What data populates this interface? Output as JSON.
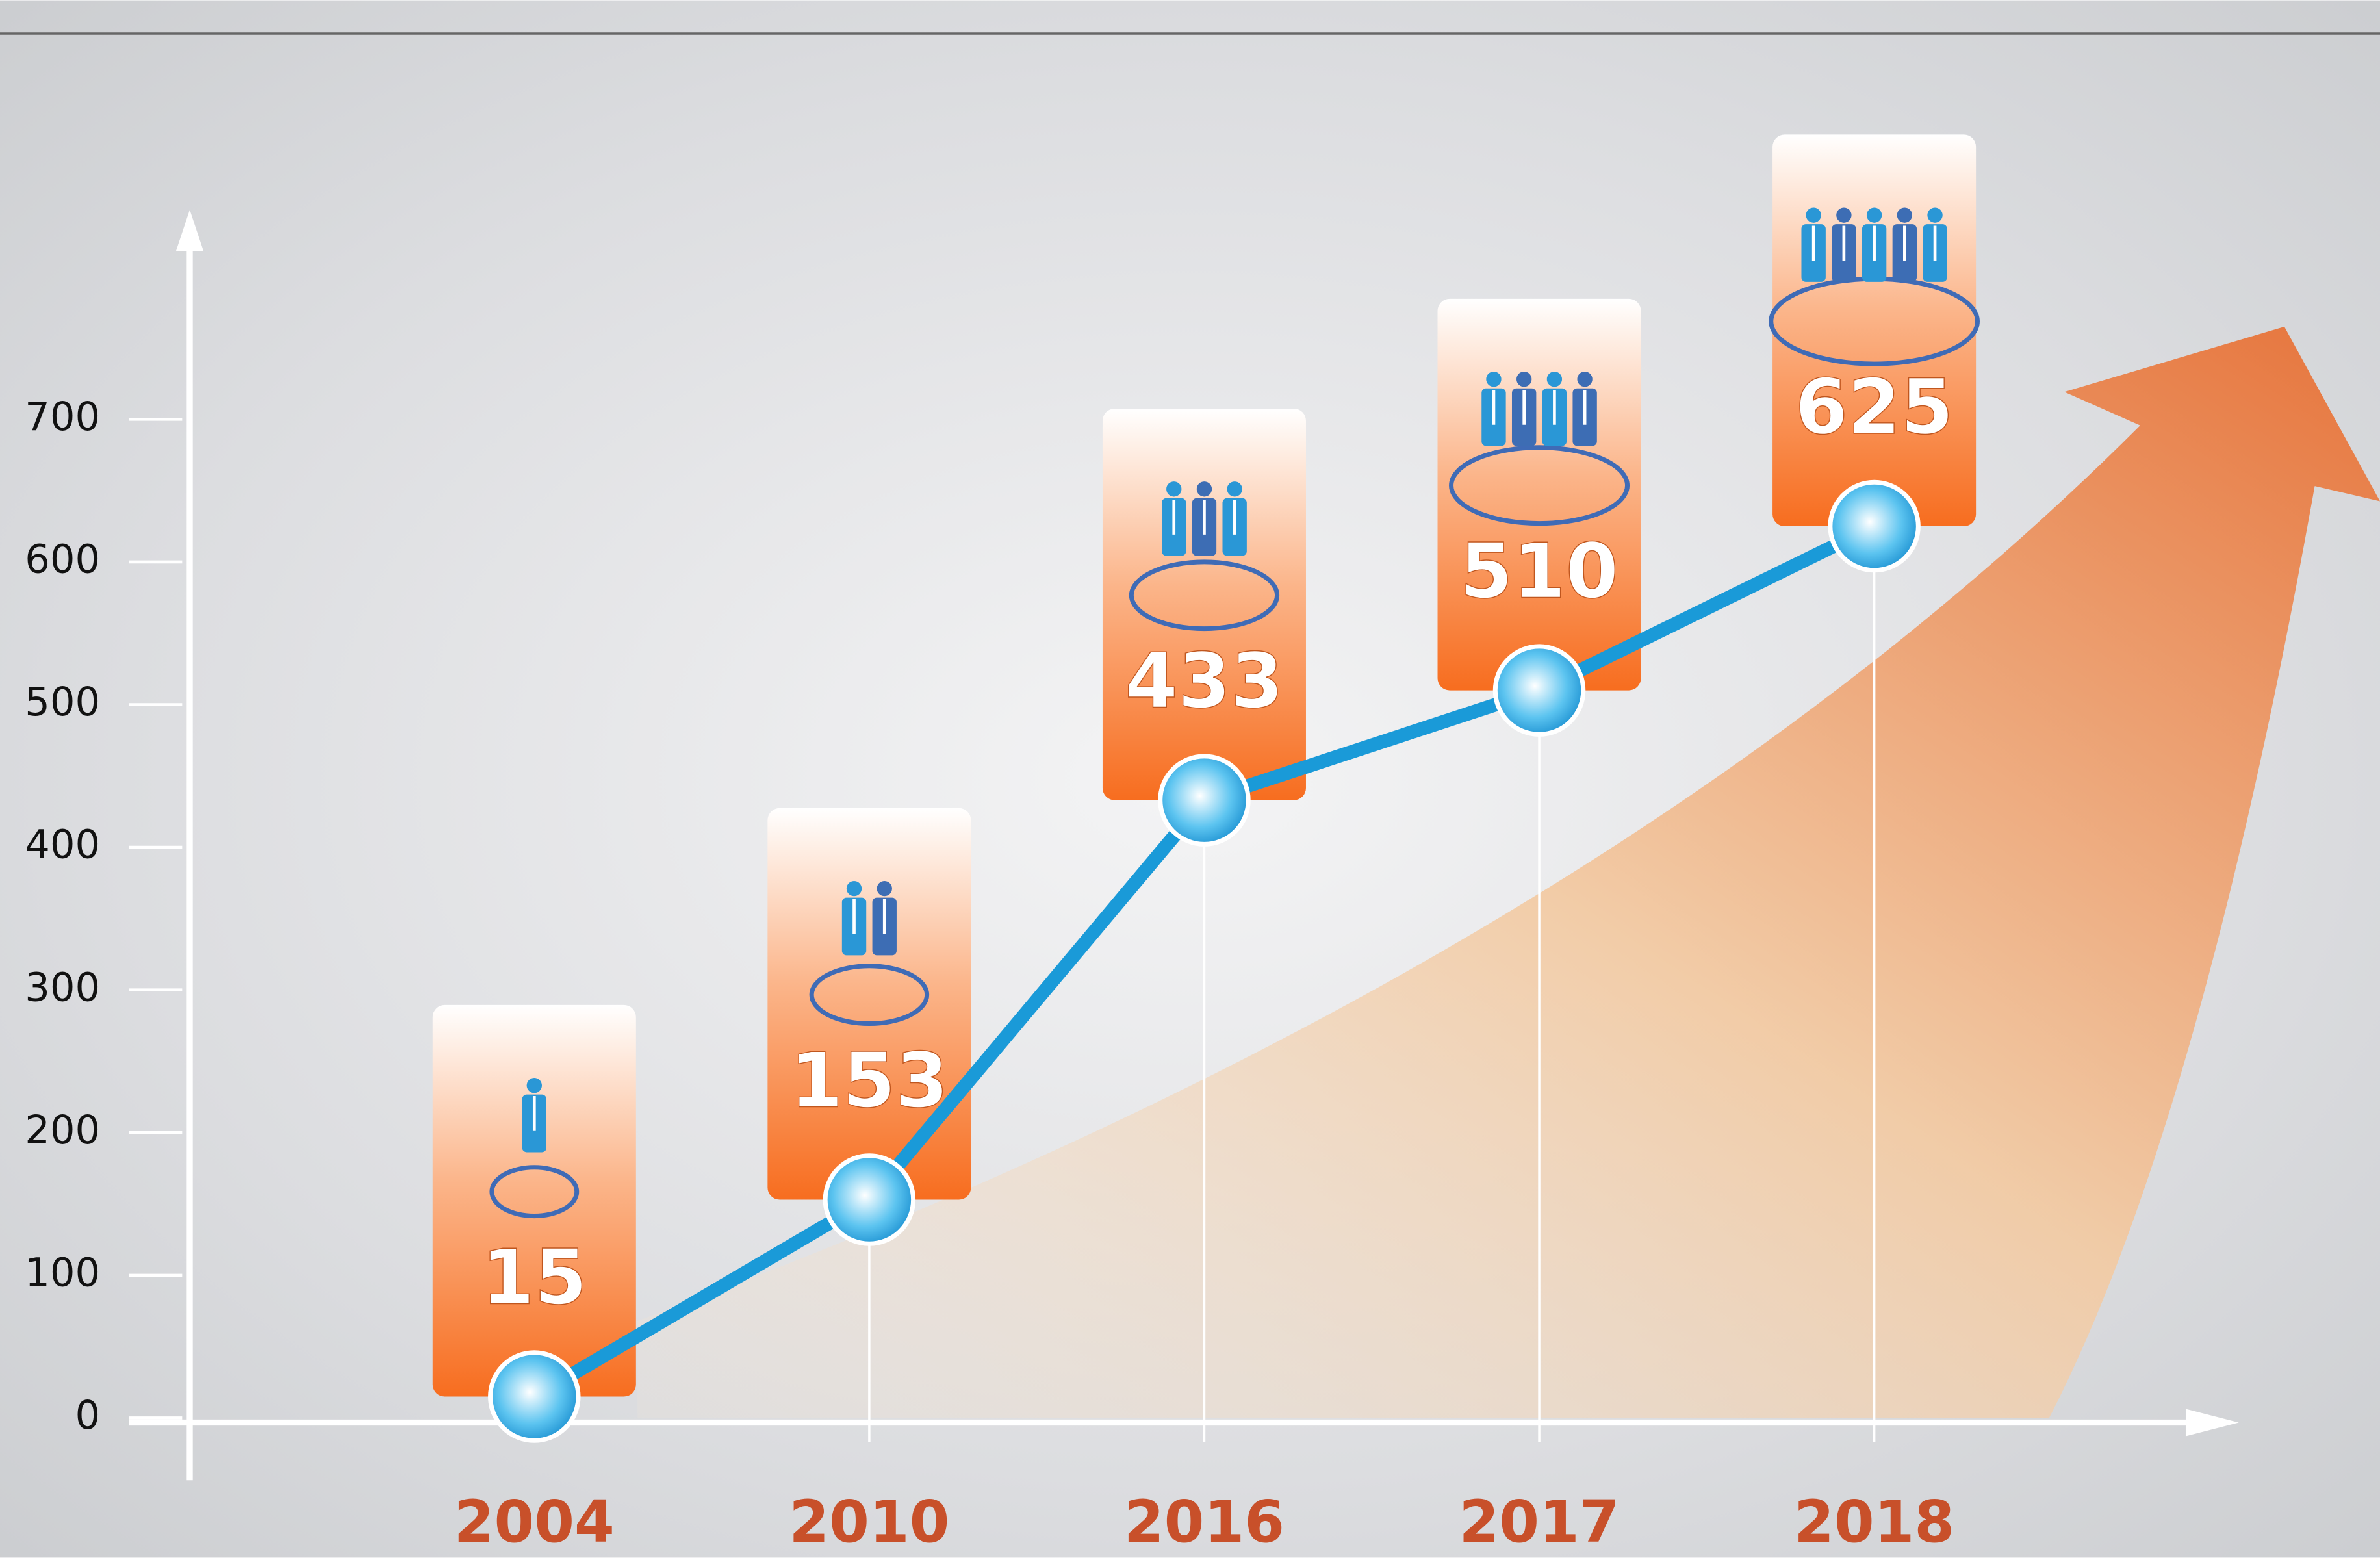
{
  "chart_data": {
    "type": "line",
    "categories": [
      "2004",
      "2010",
      "2016",
      "2017",
      "2018"
    ],
    "values": [
      15,
      153,
      433,
      510,
      625
    ],
    "color": "#1a9ad8",
    "ylim": [
      0,
      800
    ],
    "yticks": [
      0,
      100,
      200,
      300,
      400,
      500,
      600,
      700
    ]
  }
}
